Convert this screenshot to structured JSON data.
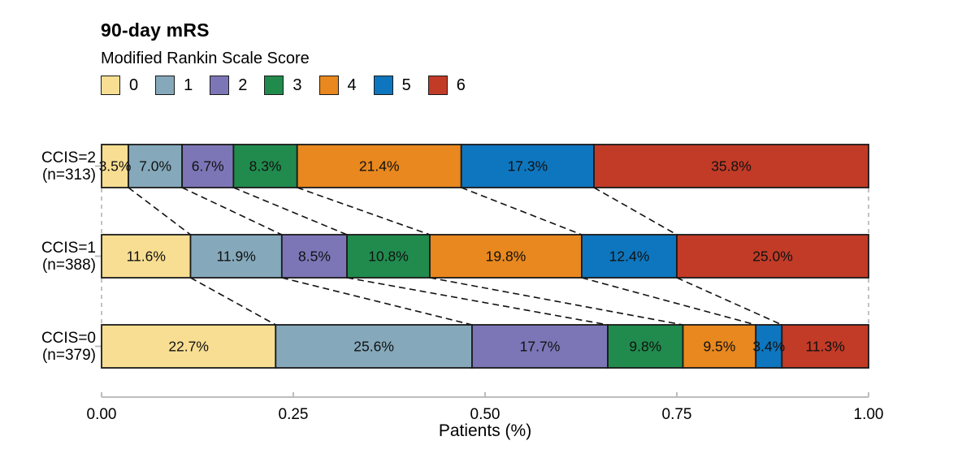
{
  "chart_data": {
    "type": "bar",
    "orientation": "horizontal_stacked",
    "title": "90-day mRS",
    "legend_title": "Modified Rankin Scale Score",
    "legend_position": "top-left",
    "xlabel": "Patients (%)",
    "xlim": [
      0,
      1
    ],
    "x_ticks": [
      "0.00",
      "0.25",
      "0.50",
      "0.75",
      "1.00"
    ],
    "x_tick_values": [
      0,
      0.25,
      0.5,
      0.75,
      1.0
    ],
    "grid": false,
    "categories": [
      {
        "line1": "CCIS=2",
        "line2": "(n=313)"
      },
      {
        "line1": "CCIS=1",
        "line2": "(n=388)"
      },
      {
        "line1": "CCIS=0",
        "line2": "(n=379)"
      }
    ],
    "series": [
      {
        "name": "0",
        "color": "#F8DE92",
        "values": [
          3.5,
          11.6,
          22.7
        ]
      },
      {
        "name": "1",
        "color": "#85A9BB",
        "values": [
          7.0,
          11.9,
          25.6
        ]
      },
      {
        "name": "2",
        "color": "#7C76B7",
        "values": [
          6.7,
          8.5,
          17.7
        ]
      },
      {
        "name": "3",
        "color": "#218B4E",
        "values": [
          8.3,
          10.8,
          9.8
        ]
      },
      {
        "name": "4",
        "color": "#E8881E",
        "values": [
          21.4,
          19.8,
          9.5
        ]
      },
      {
        "name": "5",
        "color": "#0E76BE",
        "values": [
          17.3,
          12.4,
          3.4
        ]
      },
      {
        "name": "6",
        "color": "#C23B27",
        "values": [
          35.8,
          25.0,
          11.3
        ]
      }
    ],
    "segment_labels": [
      [
        "3.5%",
        "7.0%",
        "6.7%",
        "8.3%",
        "21.4%",
        "17.3%",
        "35.8%"
      ],
      [
        "11.6%",
        "11.9%",
        "8.5%",
        "10.8%",
        "19.8%",
        "12.4%",
        "25.0%"
      ],
      [
        "22.7%",
        "25.6%",
        "17.7%",
        "9.8%",
        "9.5%",
        "3.4%",
        "11.3%"
      ]
    ],
    "annotations": "dashed connector lines link cumulative segment boundaries between adjacent bars; dashed vertical guides at 0.00 and 1.00"
  },
  "styles": {
    "bar_border": "#1A1A1A",
    "segment_label_color": "#111111",
    "connector_color": "#111111",
    "boundary_dash_color": "#A9A9A9",
    "axis_color": "#BDBDBD",
    "tick_label_color": "#000000"
  }
}
